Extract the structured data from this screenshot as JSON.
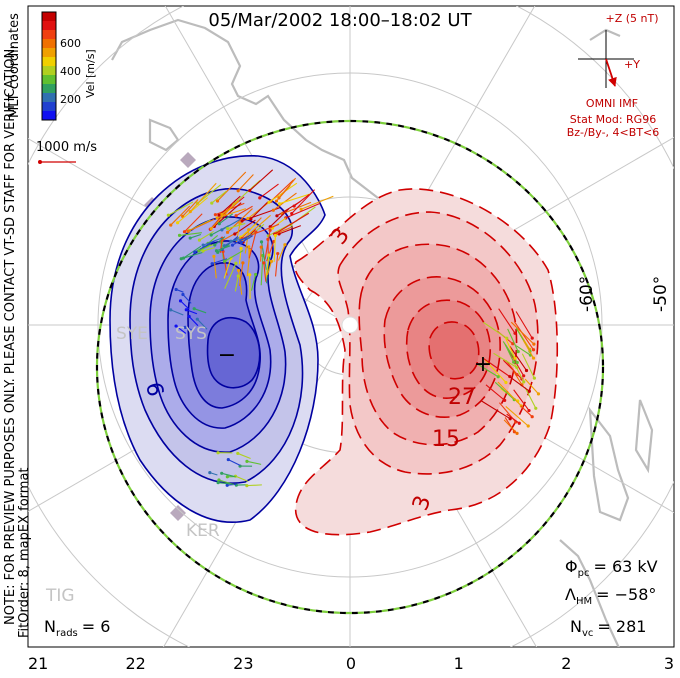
{
  "title": "05/Mar/2002 18:00–18:02 UT",
  "colorbar": {
    "label": "Vel [m/s]",
    "ticks": [
      "600",
      "400",
      "200"
    ],
    "colors": [
      "#c40000",
      "#e01010",
      "#f04010",
      "#f07000",
      "#f0a000",
      "#f0d000",
      "#b0d020",
      "#60c030",
      "#30a060",
      "#3070b0",
      "#2040d0",
      "#1010f0"
    ]
  },
  "side_note": "MLT coordinates",
  "vector_scale": "1000 m/s",
  "preview_note": "NOTE: FOR PREVIEW PURPOSES ONLY. PLEASE CONTACT VT-SD STAFF FOR VERIFICATION.",
  "fit_note": "FitOrder: 8, mapEX format",
  "imf": {
    "scale_label": "+Z (5 nT)",
    "y_label": "+Y",
    "source": "OMNI IMF",
    "model": "Stat Mod: RG96",
    "condition": "Bz-/By-, 4<BT<6",
    "by_nT": -1.5,
    "bz_nT": -4.5
  },
  "latitude_labels": [
    "-60°",
    "-50°"
  ],
  "stations": [
    "SYE",
    "SYS",
    "KER",
    "TIG"
  ],
  "stats": {
    "phi_symbol": "Φ",
    "phi_sub": "pc",
    "phi_value": "= 63 kV",
    "lambda_symbol": "Λ",
    "lambda_sub": "HM",
    "lambda_value": "= −58°",
    "nvc_symbol": "N",
    "nvc_sub": "vc",
    "nvc_value": "= 281",
    "nrads_symbol": "N",
    "nrads_sub": "rads",
    "nrads_value": "= 6"
  },
  "contour_labels": {
    "neg": [
      "6",
      "−"
    ],
    "pos": [
      "3",
      "3",
      "15",
      "27",
      "+"
    ]
  },
  "chart_data": {
    "type": "polar-contour",
    "title": "05/Mar/2002 18:00–18:02 UT",
    "x_axis": {
      "label": "MLT",
      "ticks": [
        "21",
        "22",
        "23",
        "0",
        "1",
        "2",
        "3"
      ]
    },
    "potential": {
      "cross_polar_cap_kV": 63,
      "contour_labels_kV": [
        3,
        15,
        27,
        -6
      ],
      "min_marker": "−",
      "max_marker": "+"
    },
    "heppner_maynard_boundary_deg": -58,
    "num_vectors": 281,
    "num_radars": 6
  }
}
